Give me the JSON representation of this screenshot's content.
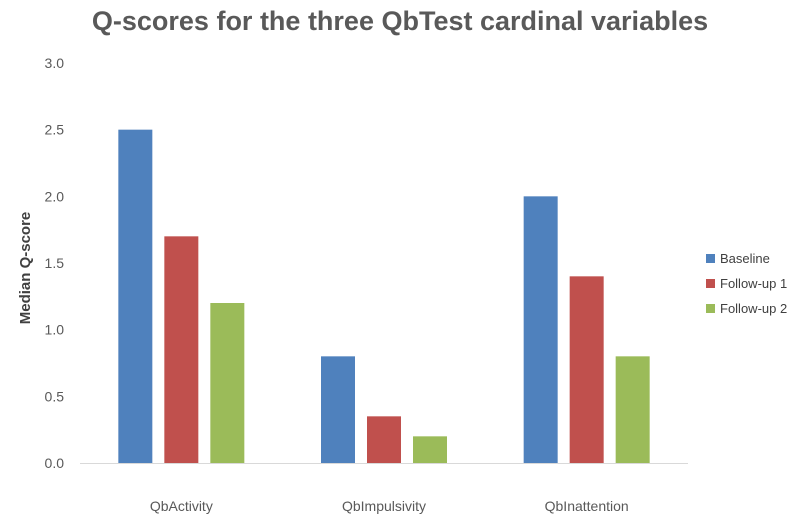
{
  "chart_data": {
    "type": "bar",
    "title": "Q-scores for the three QbTest cardinal variables",
    "xlabel": "",
    "ylabel": "Median Q-score",
    "categories": [
      "QbActivity",
      "QbImpulsivity",
      "QbInattention"
    ],
    "series": [
      {
        "name": "Baseline",
        "color": "#4f81bd",
        "values": [
          2.5,
          0.8,
          2.0
        ]
      },
      {
        "name": "Follow-up 1",
        "color": "#c0504d",
        "values": [
          1.7,
          0.35,
          1.4
        ]
      },
      {
        "name": "Follow-up 2",
        "color": "#9bbb59",
        "values": [
          1.2,
          0.2,
          0.8
        ]
      }
    ],
    "ylim": [
      0,
      3.0
    ],
    "yticks": [
      "0.0",
      "0.5",
      "1.0",
      "1.5",
      "2.0",
      "2.5",
      "3.0"
    ],
    "grid": false,
    "legend_position": "right"
  }
}
